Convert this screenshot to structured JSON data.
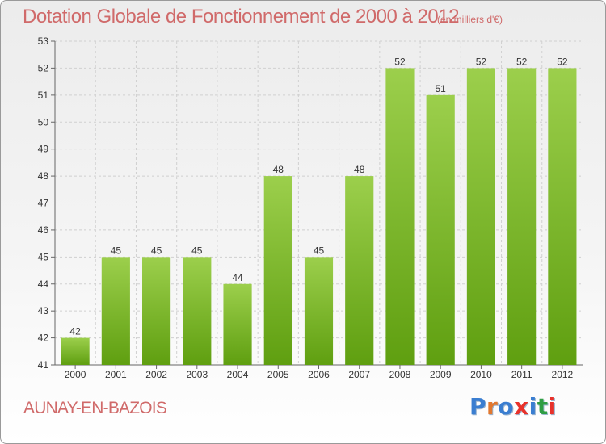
{
  "header": {
    "title": "Dotation Globale de Fonctionnement de 2000 à 2012",
    "unit": "(en milliers d'€)"
  },
  "footer": {
    "commune": "AUNAY-EN-BAZOIS",
    "brand": "Proxiti",
    "brand_colors": [
      "#3a7ed1",
      "#e2782f",
      "#3a7ed1",
      "#e8322b",
      "#3a7ed1",
      "#2f9e44",
      "#e8322b"
    ]
  },
  "chart_data": {
    "type": "bar",
    "title": "Dotation Globale de Fonctionnement de 2000 à 2012",
    "unit": "(en milliers d'€)",
    "categories": [
      "2000",
      "2001",
      "2002",
      "2003",
      "2004",
      "2005",
      "2006",
      "2007",
      "2008",
      "2009",
      "2010",
      "2011",
      "2012"
    ],
    "values": [
      42,
      45,
      45,
      45,
      44,
      48,
      45,
      48,
      52,
      51,
      52,
      52,
      52
    ],
    "ylim": [
      41,
      53
    ],
    "yticks": [
      41,
      42,
      43,
      44,
      45,
      46,
      47,
      48,
      49,
      50,
      51,
      52,
      53
    ],
    "grid": true,
    "legend": "none",
    "colors": {
      "bar_top": "#9ccf4c",
      "bar_bottom": "#5f9f10",
      "grid": "#d0d0d0",
      "axis": "#666666",
      "label": "#333333"
    }
  }
}
